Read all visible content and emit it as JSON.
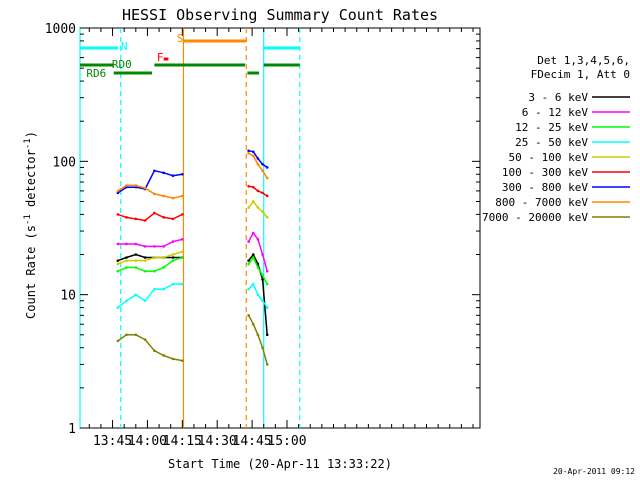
{
  "chart_data": {
    "type": "line",
    "title": "HESSI Observing Summary Count Rates",
    "xlabel": "Start Time (20-Apr-11 13:33:22)",
    "ylabel_parts": [
      "Count Rate (s",
      "-1",
      " detector",
      "-1",
      ")"
    ],
    "yscale": "log",
    "ylim": [
      1,
      1000
    ],
    "xlim_min": [
      -2,
      170
    ],
    "x_ticks": [
      {
        "min": 12,
        "label": "13:45"
      },
      {
        "min": 27,
        "label": "14:00"
      },
      {
        "min": 42,
        "label": "14:15"
      },
      {
        "min": 57,
        "label": "14:30"
      },
      {
        "min": 72,
        "label": "14:45"
      },
      {
        "min": 87,
        "label": "15:00"
      }
    ],
    "y_ticks": [
      {
        "value": 1,
        "label": "1"
      },
      {
        "value": 10,
        "label": "10"
      },
      {
        "value": 100,
        "label": "100"
      },
      {
        "value": 1000,
        "label": "1000"
      }
    ],
    "legend": {
      "header": [
        "Det 1,3,4,5,6,",
        "FDecim 1, Att 0"
      ],
      "placement": "right"
    },
    "series": [
      {
        "name": "3 - 6 keV",
        "color": "#000000",
        "values": [
          [
            14.3,
            18
          ],
          [
            18,
            19
          ],
          [
            22,
            20
          ],
          [
            26,
            19
          ],
          [
            30,
            19
          ],
          [
            34,
            19
          ],
          [
            38,
            19
          ],
          [
            42,
            19
          ],
          [
            70.5,
            18
          ],
          [
            72.5,
            20
          ],
          [
            74.5,
            17
          ],
          [
            76.5,
            13
          ],
          [
            78.5,
            5
          ]
        ]
      },
      {
        "name": "6 - 12 keV",
        "color": "#ff00ff",
        "values": [
          [
            14.3,
            24
          ],
          [
            18,
            24
          ],
          [
            22,
            24
          ],
          [
            26,
            23
          ],
          [
            30,
            23
          ],
          [
            34,
            23
          ],
          [
            38,
            25
          ],
          [
            42,
            26
          ],
          [
            70.5,
            25
          ],
          [
            72.5,
            29
          ],
          [
            74.5,
            26
          ],
          [
            76.5,
            20
          ],
          [
            78.5,
            15
          ]
        ]
      },
      {
        "name": "12 - 25 keV",
        "color": "#00ff00",
        "values": [
          [
            14.3,
            15
          ],
          [
            18,
            16
          ],
          [
            22,
            16
          ],
          [
            26,
            15
          ],
          [
            30,
            15
          ],
          [
            34,
            16
          ],
          [
            38,
            18
          ],
          [
            42,
            19
          ],
          [
            70.5,
            17
          ],
          [
            72.5,
            19
          ],
          [
            74.5,
            16
          ],
          [
            76.5,
            14
          ],
          [
            78.5,
            12
          ]
        ]
      },
      {
        "name": "25 - 50 keV",
        "color": "#00ffff",
        "values": [
          [
            14.3,
            8
          ],
          [
            18,
            9
          ],
          [
            22,
            10
          ],
          [
            26,
            9
          ],
          [
            30,
            11
          ],
          [
            34,
            11
          ],
          [
            38,
            12
          ],
          [
            42,
            12
          ],
          [
            70.5,
            11
          ],
          [
            72.5,
            12
          ],
          [
            74.5,
            10
          ],
          [
            76.5,
            9
          ],
          [
            78.5,
            8
          ]
        ]
      },
      {
        "name": "50 - 100 keV",
        "color": "#cccc00",
        "values": [
          [
            14.3,
            17
          ],
          [
            18,
            18
          ],
          [
            22,
            18
          ],
          [
            26,
            18
          ],
          [
            30,
            19
          ],
          [
            34,
            19
          ],
          [
            38,
            20
          ],
          [
            42,
            21
          ],
          [
            70.5,
            45
          ],
          [
            72.5,
            50
          ],
          [
            74.5,
            45
          ],
          [
            76.5,
            42
          ],
          [
            78.5,
            38
          ]
        ]
      },
      {
        "name": "100 - 300 keV",
        "color": "#ff0000",
        "values": [
          [
            14.3,
            40
          ],
          [
            18,
            38
          ],
          [
            22,
            37
          ],
          [
            26,
            36
          ],
          [
            30,
            41
          ],
          [
            34,
            38
          ],
          [
            38,
            37
          ],
          [
            42,
            40
          ],
          [
            70.5,
            65
          ],
          [
            72.5,
            64
          ],
          [
            74.5,
            60
          ],
          [
            76.5,
            58
          ],
          [
            78.5,
            55
          ]
        ]
      },
      {
        "name": "300 - 800 keV",
        "color": "#0000ff",
        "values": [
          [
            14.3,
            58
          ],
          [
            18,
            64
          ],
          [
            22,
            64
          ],
          [
            26,
            62
          ],
          [
            30,
            85
          ],
          [
            34,
            82
          ],
          [
            38,
            78
          ],
          [
            42,
            80
          ],
          [
            70.5,
            120
          ],
          [
            72.5,
            118
          ],
          [
            74.5,
            105
          ],
          [
            76.5,
            95
          ],
          [
            78.5,
            90
          ]
        ]
      },
      {
        "name": "800 - 7000 keV",
        "color": "#ff8800",
        "values": [
          [
            14.3,
            60
          ],
          [
            18,
            66
          ],
          [
            22,
            66
          ],
          [
            26,
            63
          ],
          [
            30,
            57
          ],
          [
            34,
            55
          ],
          [
            38,
            53
          ],
          [
            42,
            55
          ],
          [
            70.5,
            115
          ],
          [
            72.5,
            110
          ],
          [
            74.5,
            95
          ],
          [
            76.5,
            85
          ],
          [
            78.5,
            75
          ]
        ]
      },
      {
        "name": "7000 - 20000 keV",
        "color": "#808000",
        "values": [
          [
            14.3,
            4.5
          ],
          [
            18,
            5
          ],
          [
            22,
            5
          ],
          [
            26,
            4.6
          ],
          [
            30,
            3.8
          ],
          [
            34,
            3.5
          ],
          [
            38,
            3.3
          ],
          [
            42,
            3.2
          ],
          [
            70.5,
            7
          ],
          [
            72.5,
            6
          ],
          [
            74.5,
            5
          ],
          [
            76.5,
            4
          ],
          [
            78.5,
            3
          ]
        ]
      }
    ],
    "vertical_markers": [
      {
        "min": -2,
        "color": "#00ffff",
        "style": "solid"
      },
      {
        "min": 15.5,
        "color": "#00ffff",
        "style": "dashed"
      },
      {
        "min": 42.5,
        "color": "#ff8800",
        "style": "solid"
      },
      {
        "min": 69.5,
        "color": "#ff8800",
        "style": "dashed"
      },
      {
        "min": 77,
        "color": "#00ffff",
        "style": "solid"
      },
      {
        "min": 92.5,
        "color": "#00ffff",
        "style": "dashed"
      }
    ],
    "flag_bars": [
      {
        "name": "N",
        "color": "#00ffff",
        "label_at_min": 17,
        "segments": [
          [
            -2,
            14.5
          ],
          [
            77,
            92.5
          ]
        ]
      },
      {
        "name": "S",
        "color": "#ff8800",
        "label_at_min": 41,
        "segments": [
          [
            42.5,
            69.5
          ]
        ]
      },
      {
        "name": "F",
        "color": "#ff0000",
        "label_at_min": 32.5,
        "segments": [
          [
            34,
            36
          ]
        ]
      },
      {
        "name": "RD0",
        "color": "#008800",
        "label_at_min": 16,
        "segments": [
          [
            -2,
            12.5
          ],
          [
            30,
            69
          ],
          [
            77,
            92.5
          ]
        ]
      },
      {
        "name": "RD6",
        "color": "#008800",
        "label_at_min": 5,
        "segments": [
          [
            12.5,
            29
          ],
          [
            70,
            75
          ]
        ]
      }
    ]
  },
  "footer": {
    "timestamp": "20-Apr-2011 09:12"
  }
}
